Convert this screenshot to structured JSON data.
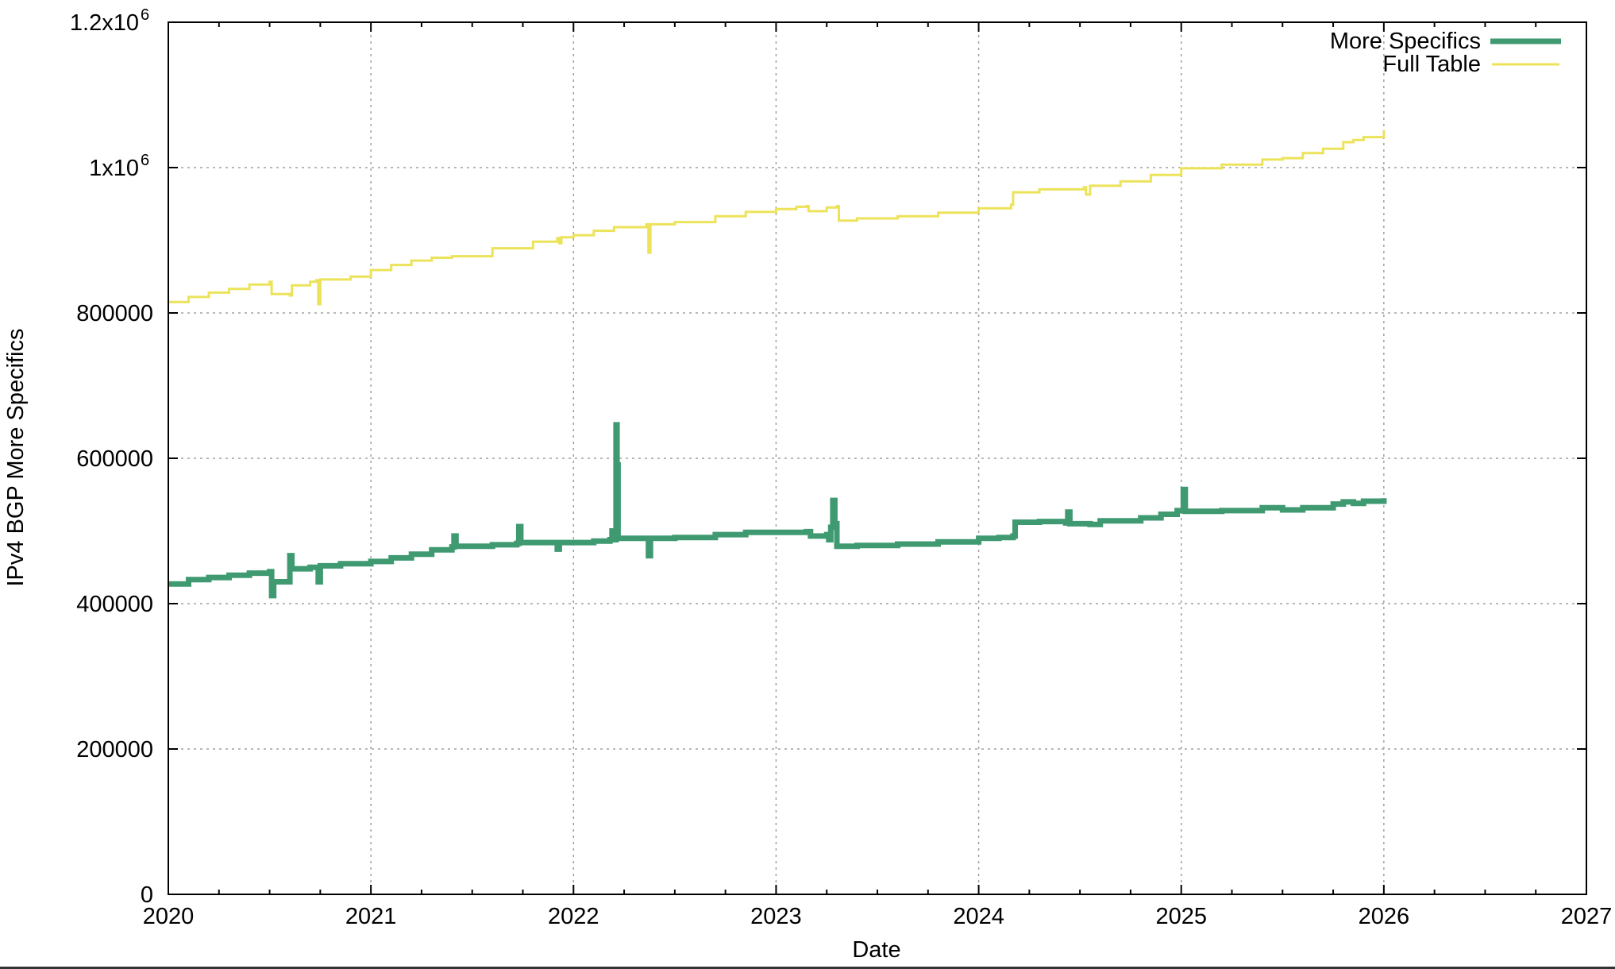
{
  "chart_data": {
    "type": "line",
    "title": "",
    "xlabel": "Date",
    "ylabel": "IPv4 BGP More Specifics",
    "xlim": [
      2020,
      2027
    ],
    "ylim": [
      0,
      1200000
    ],
    "grid": true,
    "legend_position": "top-right",
    "x_ticks": [
      {
        "value": 2020,
        "label": "2020"
      },
      {
        "value": 2021,
        "label": "2021"
      },
      {
        "value": 2022,
        "label": "2022"
      },
      {
        "value": 2023,
        "label": "2023"
      },
      {
        "value": 2024,
        "label": "2024"
      },
      {
        "value": 2025,
        "label": "2025"
      },
      {
        "value": 2026,
        "label": "2026"
      },
      {
        "value": 2027,
        "label": "2027"
      }
    ],
    "y_ticks": [
      {
        "value": 0,
        "label": "0"
      },
      {
        "value": 200000,
        "label": "200000"
      },
      {
        "value": 400000,
        "label": "400000"
      },
      {
        "value": 600000,
        "label": "600000"
      },
      {
        "value": 800000,
        "label": "800000"
      },
      {
        "value": 1000000,
        "label": "1x10",
        "sup": "6"
      },
      {
        "value": 1200000,
        "label": "1.2x10",
        "sup": "6"
      }
    ],
    "series": [
      {
        "name": "More Specifics",
        "color": "#3f9a72",
        "width": 7,
        "points": [
          [
            2020.0,
            427000
          ],
          [
            2020.1,
            433000
          ],
          [
            2020.2,
            436000
          ],
          [
            2020.3,
            439000
          ],
          [
            2020.4,
            442000
          ],
          [
            2020.5,
            444000
          ],
          [
            2020.51,
            411000
          ],
          [
            2020.52,
            430000
          ],
          [
            2020.59,
            430000
          ],
          [
            2020.6,
            466000
          ],
          [
            2020.61,
            448000
          ],
          [
            2020.7,
            450000
          ],
          [
            2020.73,
            450000
          ],
          [
            2020.74,
            430000
          ],
          [
            2020.75,
            452000
          ],
          [
            2020.85,
            455000
          ],
          [
            2021.0,
            458000
          ],
          [
            2021.1,
            463000
          ],
          [
            2021.2,
            468000
          ],
          [
            2021.3,
            474000
          ],
          [
            2021.4,
            478000
          ],
          [
            2021.41,
            493000
          ],
          [
            2021.42,
            479000
          ],
          [
            2021.6,
            481000
          ],
          [
            2021.72,
            483000
          ],
          [
            2021.73,
            506000
          ],
          [
            2021.74,
            484000
          ],
          [
            2021.9,
            484000
          ],
          [
            2021.92,
            475000
          ],
          [
            2021.93,
            484000
          ],
          [
            2022.0,
            484000
          ],
          [
            2022.1,
            486000
          ],
          [
            2022.18,
            488000
          ],
          [
            2022.19,
            500000
          ],
          [
            2022.2,
            488000
          ],
          [
            2022.21,
            646000
          ],
          [
            2022.215,
            591000
          ],
          [
            2022.22,
            490000
          ],
          [
            2022.36,
            490000
          ],
          [
            2022.37,
            466000
          ],
          [
            2022.38,
            490000
          ],
          [
            2022.5,
            491000
          ],
          [
            2022.7,
            495000
          ],
          [
            2022.85,
            498000
          ],
          [
            2023.0,
            498000
          ],
          [
            2023.15,
            499000
          ],
          [
            2023.17,
            493000
          ],
          [
            2023.25,
            495000
          ],
          [
            2023.26,
            488000
          ],
          [
            2023.27,
            505000
          ],
          [
            2023.28,
            542000
          ],
          [
            2023.29,
            510000
          ],
          [
            2023.3,
            479000
          ],
          [
            2023.4,
            480000
          ],
          [
            2023.6,
            482000
          ],
          [
            2023.8,
            485000
          ],
          [
            2024.0,
            490000
          ],
          [
            2024.1,
            491000
          ],
          [
            2024.17,
            493000
          ],
          [
            2024.18,
            512000
          ],
          [
            2024.3,
            513000
          ],
          [
            2024.43,
            511000
          ],
          [
            2024.44,
            526000
          ],
          [
            2024.45,
            510000
          ],
          [
            2024.55,
            509000
          ],
          [
            2024.6,
            514000
          ],
          [
            2024.8,
            518000
          ],
          [
            2024.9,
            523000
          ],
          [
            2024.98,
            528000
          ],
          [
            2025.0,
            528000
          ],
          [
            2025.01,
            557000
          ],
          [
            2025.02,
            527000
          ],
          [
            2025.2,
            528000
          ],
          [
            2025.4,
            532000
          ],
          [
            2025.5,
            529000
          ],
          [
            2025.6,
            532000
          ],
          [
            2025.75,
            537000
          ],
          [
            2025.8,
            540000
          ],
          [
            2025.85,
            538000
          ],
          [
            2025.9,
            541000
          ],
          [
            2026.0,
            545000
          ]
        ]
      },
      {
        "name": "Full Table",
        "color": "#ece35a",
        "width": 3,
        "points": [
          [
            2020.0,
            815000
          ],
          [
            2020.1,
            822000
          ],
          [
            2020.2,
            828000
          ],
          [
            2020.3,
            833000
          ],
          [
            2020.4,
            839000
          ],
          [
            2020.5,
            843000
          ],
          [
            2020.51,
            826000
          ],
          [
            2020.6,
            824000
          ],
          [
            2020.61,
            838000
          ],
          [
            2020.7,
            843000
          ],
          [
            2020.73,
            845000
          ],
          [
            2020.74,
            812000
          ],
          [
            2020.75,
            846000
          ],
          [
            2020.9,
            850000
          ],
          [
            2021.0,
            859000
          ],
          [
            2021.1,
            866000
          ],
          [
            2021.2,
            872000
          ],
          [
            2021.3,
            876000
          ],
          [
            2021.4,
            878000
          ],
          [
            2021.6,
            889000
          ],
          [
            2021.8,
            898000
          ],
          [
            2021.92,
            903000
          ],
          [
            2021.93,
            896000
          ],
          [
            2021.94,
            904000
          ],
          [
            2022.0,
            907000
          ],
          [
            2022.1,
            913000
          ],
          [
            2022.2,
            918000
          ],
          [
            2022.36,
            922000
          ],
          [
            2022.37,
            883000
          ],
          [
            2022.38,
            922000
          ],
          [
            2022.5,
            925000
          ],
          [
            2022.7,
            933000
          ],
          [
            2022.85,
            939000
          ],
          [
            2023.0,
            943000
          ],
          [
            2023.1,
            946000
          ],
          [
            2023.15,
            947000
          ],
          [
            2023.16,
            940000
          ],
          [
            2023.25,
            945000
          ],
          [
            2023.3,
            947000
          ],
          [
            2023.31,
            927000
          ],
          [
            2023.4,
            930000
          ],
          [
            2023.6,
            933000
          ],
          [
            2023.8,
            938000
          ],
          [
            2024.0,
            944000
          ],
          [
            2024.16,
            949000
          ],
          [
            2024.17,
            966000
          ],
          [
            2024.3,
            970000
          ],
          [
            2024.52,
            973000
          ],
          [
            2024.53,
            963000
          ],
          [
            2024.55,
            975000
          ],
          [
            2024.7,
            981000
          ],
          [
            2024.85,
            990000
          ],
          [
            2025.0,
            999000
          ],
          [
            2025.2,
            1004000
          ],
          [
            2025.4,
            1011000
          ],
          [
            2025.5,
            1013000
          ],
          [
            2025.6,
            1020000
          ],
          [
            2025.7,
            1026000
          ],
          [
            2025.8,
            1035000
          ],
          [
            2025.85,
            1038000
          ],
          [
            2025.9,
            1042000
          ],
          [
            2026.0,
            1051000
          ]
        ]
      }
    ]
  },
  "legend": {
    "items": [
      {
        "label": "More Specifics",
        "color": "#3f9a72"
      },
      {
        "label": "Full Table",
        "color": "#ece35a"
      }
    ]
  },
  "colors": {
    "axis": "#000000",
    "grid": "#a0a0a0",
    "background": "#ffffff"
  }
}
